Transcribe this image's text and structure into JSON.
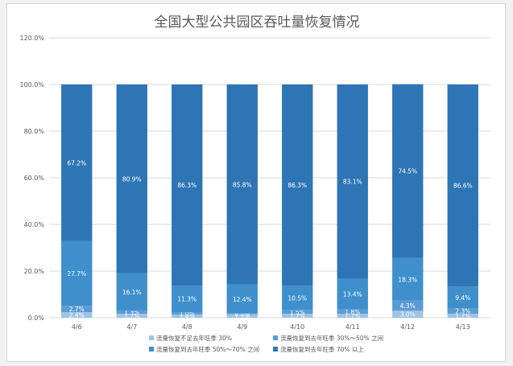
{
  "chart_data": {
    "type": "bar",
    "stacked": true,
    "title": "全国大型公共园区吞吐量恢复情况",
    "categories": [
      "4/6",
      "4/7",
      "4/8",
      "4/9",
      "4/10",
      "4/11",
      "4/12",
      "4/13"
    ],
    "ylim": [
      0,
      120
    ],
    "yticks": [
      "0.0%",
      "20.0%",
      "40.0%",
      "60.0%",
      "80.0%",
      "100.0%",
      "120.0%"
    ],
    "grid": true,
    "legend_position": "bottom",
    "series": [
      {
        "name": "流量恢复不足去年旺季 30%",
        "color": "#9dc3e6",
        "values": [
          2.4,
          1.7,
          1.4,
          1.5,
          1.7,
          1.7,
          3.0,
          1.7
        ],
        "labels": [
          "2.4%",
          "1.7%",
          "1.4%",
          "1.5%",
          "1.7%",
          "1.7%",
          "3.0%",
          "1.7%"
        ]
      },
      {
        "name": "流量恢复到去年旺季 30%～50% 之间",
        "color": "#5b9bd5",
        "values": [
          2.7,
          1.3,
          1.0,
          0.3,
          1.5,
          1.8,
          4.3,
          2.3
        ],
        "labels": [
          "2.7%",
          "1.3%",
          "1.0%",
          "0.3%",
          "1.5%",
          "1.8%",
          "4.3%",
          "2.3%"
        ]
      },
      {
        "name": "流量恢复到去年旺季 50%～70% 之间",
        "color": "#3f8fcc",
        "values": [
          27.7,
          16.1,
          11.3,
          12.4,
          10.5,
          13.4,
          18.3,
          9.4
        ],
        "labels": [
          "27.7%",
          "16.1%",
          "11.3%",
          "12.4%",
          "10.5%",
          "13.4%",
          "18.3%",
          "9.4%"
        ]
      },
      {
        "name": "流量恢复到去年旺季 70% 以上",
        "color": "#2e75b6",
        "values": [
          67.2,
          80.9,
          86.3,
          85.8,
          86.3,
          83.1,
          74.5,
          86.6
        ],
        "labels": [
          "67.2%",
          "80.9%",
          "86.3%",
          "85.8%",
          "86.3%",
          "83.1%",
          "74.5%",
          "86.6%"
        ]
      }
    ]
  }
}
